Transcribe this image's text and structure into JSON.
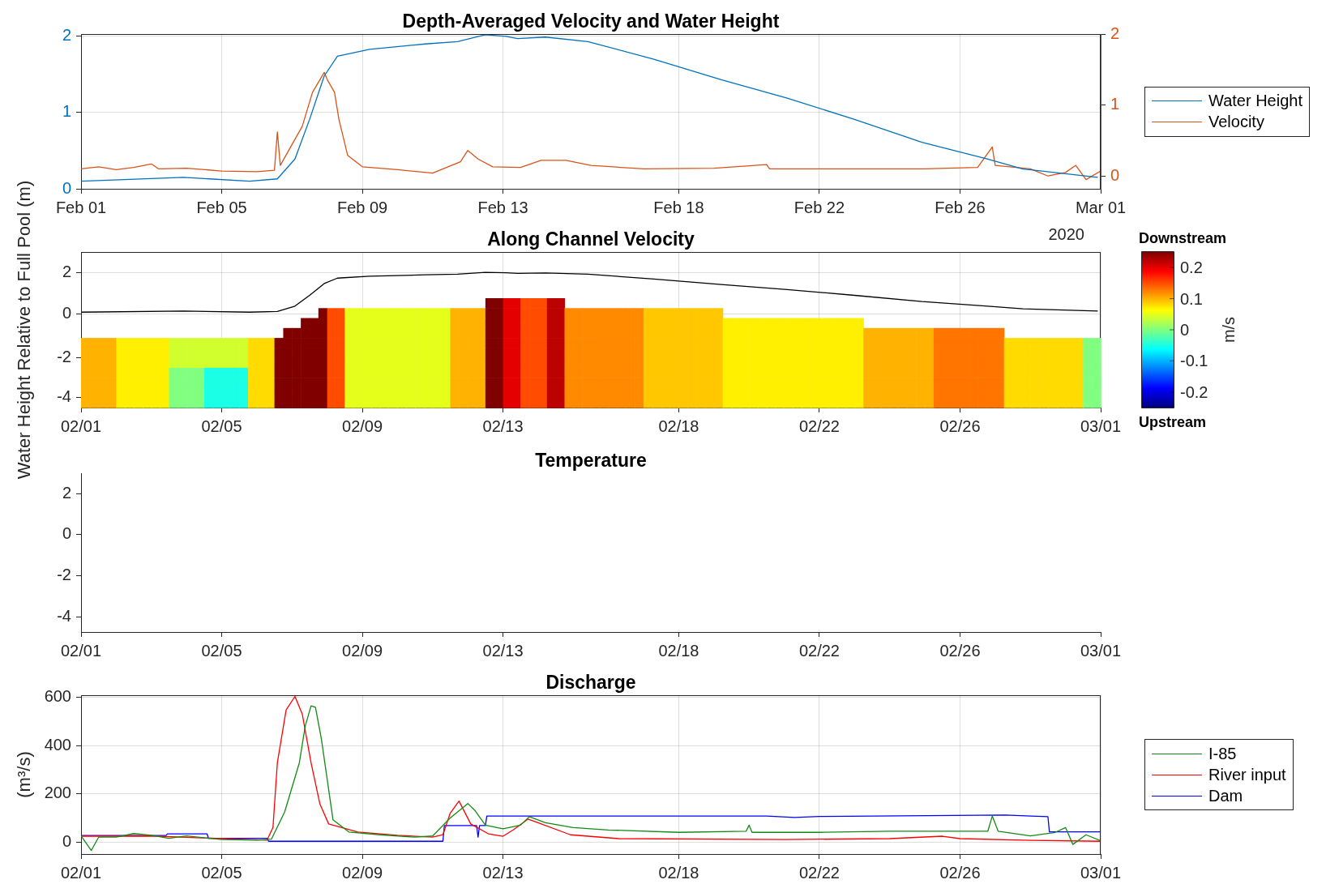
{
  "chart_data": [
    {
      "type": "line",
      "title": "Depth-Averaged Velocity and Water Height",
      "xlim": [
        "2020-02-01",
        "2020-03-01"
      ],
      "xticks": [
        {
          "value": "2020-02-01",
          "label": "Feb 01"
        },
        {
          "value": "2020-02-05",
          "label": "Feb 05"
        },
        {
          "value": "2020-02-09",
          "label": "Feb 09"
        },
        {
          "value": "2020-02-13",
          "label": "Feb 13"
        },
        {
          "value": "2020-02-18",
          "label": "Feb 18"
        },
        {
          "value": "2020-02-22",
          "label": "Feb 22"
        },
        {
          "value": "2020-02-26",
          "label": "Feb 26"
        },
        {
          "value": "2020-03-01",
          "label": "Mar 01"
        }
      ],
      "ylim": [
        0,
        2.03
      ],
      "yticks": [
        0,
        1,
        2
      ],
      "y2lim": [
        -0.18,
        2
      ],
      "y2ticks": [
        0,
        1,
        2
      ],
      "grid": true,
      "legend": "right",
      "annotations": [
        "2020"
      ],
      "series": [
        {
          "name": "Water Height",
          "color": "#0072bd",
          "x": [
            "2020-02-01T00:00",
            "2020-02-03T22:00",
            "2020-02-05T19:00",
            "2020-02-06T14:00",
            "2020-02-07T02:00",
            "2020-02-07T12:00",
            "2020-02-07T22:00",
            "2020-02-08T07:00",
            "2020-02-09T05:00",
            "2020-02-10T19:00",
            "2020-02-11T17:00",
            "2020-02-12T12:00",
            "2020-02-13T02:00",
            "2020-02-13T10:00",
            "2020-02-14T05:00",
            "2020-02-15T10:00",
            "2020-02-17T07:00",
            "2020-02-19T05:00",
            "2020-02-21T02:00",
            "2020-02-23T00:00",
            "2020-02-24T22:00",
            "2020-02-26T19:00",
            "2020-02-27T19:00",
            "2020-02-29T22:00"
          ],
          "values": [
            0.1,
            0.15,
            0.1,
            0.13,
            0.39,
            0.91,
            1.48,
            1.74,
            1.83,
            1.9,
            1.93,
            2.02,
            2.0,
            1.97,
            1.99,
            1.93,
            1.7,
            1.43,
            1.19,
            0.91,
            0.61,
            0.39,
            0.26,
            0.15
          ]
        },
        {
          "name": "Velocity",
          "color": "#d95319",
          "axis": "y2",
          "x": [
            "2020-02-01T00:00",
            "2020-02-01T12:00",
            "2020-02-02T00:00",
            "2020-02-02T12:00",
            "2020-02-03T00:00",
            "2020-02-03T05:00",
            "2020-02-04T00:00",
            "2020-02-05T00:00",
            "2020-02-06T00:00",
            "2020-02-06T12:00",
            "2020-02-06T14:00",
            "2020-02-06T16:00",
            "2020-02-07T07:00",
            "2020-02-07T14:00",
            "2020-02-07T22:00",
            "2020-02-08T00:00",
            "2020-02-08T05:00",
            "2020-02-08T08:00",
            "2020-02-08T14:00",
            "2020-02-09T00:00",
            "2020-02-10T00:00",
            "2020-02-11T00:00",
            "2020-02-11T19:00",
            "2020-02-12T00:00",
            "2020-02-12T07:00",
            "2020-02-12T17:00",
            "2020-02-13T12:00",
            "2020-02-14T02:00",
            "2020-02-14T19:00",
            "2020-02-15T12:00",
            "2020-02-17T00:00",
            "2020-02-19T00:00",
            "2020-02-20T12:00",
            "2020-02-20T14:00",
            "2020-02-23T00:00",
            "2020-02-25T00:00",
            "2020-02-26T12:00",
            "2020-02-26T22:00",
            "2020-02-27T00:00",
            "2020-02-28T00:00",
            "2020-02-28T12:00",
            "2020-02-29T00:00",
            "2020-02-29T07:00",
            "2020-02-29T14:00",
            "2020-03-01T00:00"
          ],
          "values": [
            0.1,
            0.13,
            0.09,
            0.12,
            0.17,
            0.1,
            0.11,
            0.07,
            0.06,
            0.08,
            0.62,
            0.15,
            0.7,
            1.18,
            1.46,
            1.36,
            1.18,
            0.8,
            0.29,
            0.13,
            0.09,
            0.04,
            0.2,
            0.36,
            0.24,
            0.13,
            0.12,
            0.22,
            0.22,
            0.15,
            0.1,
            0.11,
            0.16,
            0.1,
            0.1,
            0.1,
            0.12,
            0.41,
            0.15,
            0.1,
            0.0,
            0.05,
            0.15,
            -0.05,
            0.07
          ]
        }
      ]
    },
    {
      "type": "line",
      "title": "Along Channel Velocity",
      "ylabel": "Water Height Relative to Full Pool (m)",
      "xlim": [
        "2020-02-01",
        "2020-03-01"
      ],
      "xticks": [
        {
          "value": "2020-02-01",
          "label": null
        },
        {
          "value": "2020-02-05",
          "label": null
        },
        {
          "value": "2020-02-09",
          "label": null
        },
        {
          "value": "2020-02-13",
          "label": null
        },
        {
          "value": "2020-02-18",
          "label": null
        },
        {
          "value": "2020-02-22",
          "label": null
        },
        {
          "value": "2020-02-26",
          "label": null
        },
        {
          "value": "2020-03-01",
          "label": null
        }
      ],
      "ylim": [
        -4.5,
        3
      ],
      "yticks": [
        0,
        2
      ],
      "grid": true,
      "tick_labels": "y",
      "series": [
        {
          "color": "#000000",
          "x": [
            "2020-02-01T00:00",
            "2020-02-03T22:00",
            "2020-02-05T19:00",
            "2020-02-06T14:00",
            "2020-02-07T02:00",
            "2020-02-07T12:00",
            "2020-02-07T22:00",
            "2020-02-08T07:00",
            "2020-02-09T05:00",
            "2020-02-10T19:00",
            "2020-02-11T17:00",
            "2020-02-12T12:00",
            "2020-02-13T02:00",
            "2020-02-13T10:00",
            "2020-02-14T05:00",
            "2020-02-15T10:00",
            "2020-02-17T07:00",
            "2020-02-19T05:00",
            "2020-02-21T02:00",
            "2020-02-23T00:00",
            "2020-02-24T22:00",
            "2020-02-26T19:00",
            "2020-02-27T19:00",
            "2020-02-29T22:00"
          ],
          "values": [
            0.1,
            0.15,
            0.1,
            0.13,
            0.39,
            0.91,
            1.48,
            1.74,
            1.83,
            1.9,
            1.93,
            2.02,
            2.0,
            1.97,
            1.99,
            1.93,
            1.7,
            1.43,
            1.19,
            0.91,
            0.61,
            0.39,
            0.26,
            0.15
          ]
        }
      ]
    },
    {
      "type": "heatmap",
      "xlim": [
        "2020-02-01",
        "2020-03-01"
      ],
      "ylim": [
        -4.5,
        1
      ],
      "yticks": [
        -4,
        -2
      ],
      "xticks": [
        {
          "value": "2020-02-01",
          "label": "02/01"
        },
        {
          "value": "2020-02-05",
          "label": "02/05"
        },
        {
          "value": "2020-02-09",
          "label": "02/09"
        },
        {
          "value": "2020-02-13",
          "label": "02/13"
        },
        {
          "value": "2020-02-18",
          "label": "02/18"
        },
        {
          "value": "2020-02-22",
          "label": "02/22"
        },
        {
          "value": "2020-02-26",
          "label": "02/26"
        },
        {
          "value": "2020-03-01",
          "label": "03/01"
        }
      ],
      "clabel": "m/s",
      "clim": [
        -0.25,
        0.25
      ],
      "cticks": [
        -0.2,
        -0.1,
        0,
        0.1,
        0.2
      ],
      "annotations": [
        "Downstream",
        "Upstream"
      ],
      "x": [
        "2020-02-01T03:00",
        "2020-02-01T09:00",
        "2020-02-01T15:00",
        "2020-02-01T21:00",
        "2020-02-02T03:00",
        "2020-02-02T09:00",
        "2020-02-02T15:00",
        "2020-02-02T21:00",
        "2020-02-03T03:00",
        "2020-02-03T09:00",
        "2020-02-03T15:00",
        "2020-02-03T21:00",
        "2020-02-04T03:00",
        "2020-02-04T09:00",
        "2020-02-04T15:00",
        "2020-02-04T21:00",
        "2020-02-05T03:00",
        "2020-02-05T09:00",
        "2020-02-05T15:00",
        "2020-02-05T21:00",
        "2020-02-06T03:00",
        "2020-02-06T09:00",
        "2020-02-06T15:00",
        "2020-02-06T21:00",
        "2020-02-07T03:00",
        "2020-02-07T09:00",
        "2020-02-07T15:00",
        "2020-02-07T21:00",
        "2020-02-08T03:00",
        "2020-02-08T09:00",
        "2020-02-08T15:00",
        "2020-02-08T21:00",
        "2020-02-09T03:00",
        "2020-02-09T09:00",
        "2020-02-09T15:00",
        "2020-02-09T21:00",
        "2020-02-10T03:00",
        "2020-02-10T09:00",
        "2020-02-10T15:00",
        "2020-02-10T21:00",
        "2020-02-11T03:00",
        "2020-02-11T09:00",
        "2020-02-11T15:00",
        "2020-02-11T21:00",
        "2020-02-12T03:00",
        "2020-02-12T09:00",
        "2020-02-12T15:00",
        "2020-02-12T21:00",
        "2020-02-13T03:00",
        "2020-02-13T09:00",
        "2020-02-13T15:00",
        "2020-02-13T21:00",
        "2020-02-14T03:00",
        "2020-02-14T09:00",
        "2020-02-14T15:00",
        "2020-02-14T21:00",
        "2020-02-15T03:00",
        "2020-02-15T09:00",
        "2020-02-15T15:00",
        "2020-02-15T21:00",
        "2020-02-16T03:00",
        "2020-02-16T09:00",
        "2020-02-16T15:00",
        "2020-02-16T21:00",
        "2020-02-17T03:00",
        "2020-02-17T09:00",
        "2020-02-17T15:00",
        "2020-02-17T21:00",
        "2020-02-18T03:00",
        "2020-02-18T09:00",
        "2020-02-18T15:00",
        "2020-02-18T21:00",
        "2020-02-19T03:00",
        "2020-02-19T09:00",
        "2020-02-19T15:00",
        "2020-02-19T21:00",
        "2020-02-20T03:00",
        "2020-02-20T09:00",
        "2020-02-20T15:00",
        "2020-02-20T21:00",
        "2020-02-21T03:00",
        "2020-02-21T09:00",
        "2020-02-21T15:00",
        "2020-02-21T21:00",
        "2020-02-22T03:00",
        "2020-02-22T09:00",
        "2020-02-22T15:00",
        "2020-02-22T21:00",
        "2020-02-23T03:00",
        "2020-02-23T09:00",
        "2020-02-23T15:00",
        "2020-02-23T21:00",
        "2020-02-24T03:00",
        "2020-02-24T09:00",
        "2020-02-24T15:00",
        "2020-02-24T21:00",
        "2020-02-25T03:00",
        "2020-02-25T09:00",
        "2020-02-25T15:00",
        "2020-02-25T21:00",
        "2020-02-26T03:00",
        "2020-02-26T09:00",
        "2020-02-26T15:00",
        "2020-02-26T21:00",
        "2020-02-27T03:00",
        "2020-02-27T09:00",
        "2020-02-27T15:00",
        "2020-02-27T21:00",
        "2020-02-28T03:00",
        "2020-02-28T09:00",
        "2020-02-28T15:00",
        "2020-02-28T21:00",
        "2020-02-29T03:00",
        "2020-02-29T09:00",
        "2020-02-29T15:00",
        "2020-02-29T21:00"
      ],
      "cells": [
        [
          null,
          null,
          null,
          null,
          null,
          null,
          null,
          null,
          null,
          null,
          null,
          null,
          null,
          null,
          null,
          null,
          null,
          null,
          null,
          null,
          null,
          null,
          null,
          null,
          null,
          null,
          null,
          null,
          null,
          null,
          null,
          null,
          null,
          null,
          null,
          null,
          null,
          null,
          null,
          null,
          null,
          null,
          null,
          null,
          null,
          null,
          0.25,
          0.25,
          0.2,
          0.2,
          0.15,
          0.15,
          0.15,
          0.22,
          0.22,
          null,
          null,
          null,
          null,
          null,
          null,
          null,
          null,
          null,
          null,
          null,
          null,
          null,
          null,
          null,
          null,
          null,
          null,
          null,
          null,
          null,
          null,
          null,
          null,
          null,
          null,
          null,
          null,
          null,
          null,
          null,
          null,
          null,
          null,
          null,
          null,
          null,
          null,
          null,
          null,
          null,
          null,
          null,
          null,
          null,
          null,
          null,
          null,
          null,
          null,
          null,
          null,
          null,
          null,
          null,
          null,
          null,
          null,
          null,
          null,
          null
        ],
        [
          null,
          null,
          null,
          null,
          null,
          null,
          null,
          null,
          null,
          null,
          null,
          null,
          null,
          null,
          null,
          null,
          null,
          null,
          null,
          null,
          null,
          null,
          null,
          null,
          null,
          null,
          null,
          0.25,
          0.15,
          0.15,
          0.05,
          0.05,
          0.05,
          0.05,
          0.05,
          0.05,
          0.05,
          0.05,
          0.05,
          0.05,
          0.05,
          0.05,
          0.1,
          0.1,
          0.1,
          0.1,
          0.25,
          0.25,
          0.2,
          0.2,
          0.15,
          0.15,
          0.15,
          0.22,
          0.22,
          0.12,
          0.12,
          0.12,
          0.12,
          0.12,
          0.12,
          0.12,
          0.12,
          0.12,
          0.09,
          0.09,
          0.09,
          0.09,
          0.09,
          0.09,
          0.09,
          0.09,
          0.09,
          null,
          null,
          null,
          null,
          null,
          null,
          null,
          null,
          null,
          null,
          null,
          null,
          null,
          null,
          null,
          null,
          null,
          null,
          null,
          null,
          null,
          null,
          null,
          null,
          null,
          null,
          null,
          null,
          null,
          null,
          null,
          null,
          null,
          null,
          null,
          null,
          null,
          null,
          null,
          null,
          null,
          null,
          null
        ],
        [
          null,
          null,
          null,
          null,
          null,
          null,
          null,
          null,
          null,
          null,
          null,
          null,
          null,
          null,
          null,
          null,
          null,
          null,
          null,
          null,
          null,
          null,
          null,
          null,
          null,
          0.25,
          0.25,
          0.25,
          0.15,
          0.15,
          0.05,
          0.05,
          0.05,
          0.05,
          0.05,
          0.05,
          0.05,
          0.05,
          0.05,
          0.05,
          0.05,
          0.05,
          0.1,
          0.1,
          0.1,
          0.1,
          0.25,
          0.25,
          0.2,
          0.2,
          0.15,
          0.15,
          0.15,
          0.22,
          0.22,
          0.12,
          0.12,
          0.12,
          0.12,
          0.12,
          0.12,
          0.12,
          0.12,
          0.12,
          0.09,
          0.09,
          0.09,
          0.09,
          0.09,
          0.09,
          0.09,
          0.09,
          0.09,
          0.07,
          0.07,
          0.07,
          0.07,
          0.07,
          0.07,
          0.07,
          0.07,
          0.07,
          0.07,
          0.07,
          0.07,
          0.07,
          0.07,
          0.07,
          0.07,
          null,
          null,
          null,
          null,
          null,
          null,
          null,
          null,
          null,
          null,
          null,
          null,
          null,
          null,
          null,
          null,
          null,
          null,
          null,
          null,
          null,
          null,
          null,
          null,
          null,
          null,
          null
        ],
        [
          null,
          null,
          null,
          null,
          null,
          null,
          null,
          null,
          null,
          null,
          null,
          null,
          null,
          null,
          null,
          null,
          null,
          null,
          null,
          null,
          null,
          null,
          null,
          0.25,
          0.25,
          0.25,
          0.25,
          0.25,
          0.15,
          0.15,
          0.05,
          0.05,
          0.05,
          0.05,
          0.05,
          0.05,
          0.05,
          0.05,
          0.05,
          0.05,
          0.05,
          0.05,
          0.1,
          0.1,
          0.1,
          0.1,
          0.25,
          0.25,
          0.2,
          0.2,
          0.15,
          0.15,
          0.15,
          0.22,
          0.22,
          0.12,
          0.12,
          0.12,
          0.12,
          0.12,
          0.12,
          0.12,
          0.12,
          0.12,
          0.09,
          0.09,
          0.09,
          0.09,
          0.09,
          0.09,
          0.09,
          0.09,
          0.09,
          0.07,
          0.07,
          0.07,
          0.07,
          0.07,
          0.07,
          0.07,
          0.07,
          0.07,
          0.07,
          0.07,
          0.07,
          0.07,
          0.07,
          0.07,
          0.07,
          0.1,
          0.1,
          0.1,
          0.1,
          0.1,
          0.1,
          0.1,
          0.1,
          0.13,
          0.13,
          0.13,
          0.13,
          0.13,
          0.13,
          0.13,
          0.13,
          null,
          null,
          null,
          null,
          null,
          null,
          null,
          null,
          null,
          null,
          null
        ],
        [
          0.1,
          0.1,
          0.1,
          0.1,
          0.07,
          0.07,
          0.07,
          0.07,
          0.07,
          0.07,
          0.04,
          0.04,
          0.04,
          0.04,
          0.04,
          0.04,
          0.04,
          0.04,
          0.04,
          0.08,
          0.08,
          0.08,
          0.25,
          0.25,
          0.25,
          0.25,
          0.25,
          0.25,
          0.15,
          0.15,
          0.05,
          0.05,
          0.05,
          0.05,
          0.05,
          0.05,
          0.05,
          0.05,
          0.05,
          0.05,
          0.05,
          0.05,
          0.1,
          0.1,
          0.1,
          0.1,
          0.25,
          0.25,
          0.2,
          0.2,
          0.15,
          0.15,
          0.15,
          0.22,
          0.22,
          0.12,
          0.12,
          0.12,
          0.12,
          0.12,
          0.12,
          0.12,
          0.12,
          0.12,
          0.09,
          0.09,
          0.09,
          0.09,
          0.09,
          0.09,
          0.09,
          0.09,
          0.09,
          0.07,
          0.07,
          0.07,
          0.07,
          0.07,
          0.07,
          0.07,
          0.07,
          0.07,
          0.07,
          0.07,
          0.07,
          0.07,
          0.07,
          0.07,
          0.07,
          0.1,
          0.1,
          0.1,
          0.1,
          0.1,
          0.1,
          0.1,
          0.1,
          0.13,
          0.13,
          0.13,
          0.13,
          0.13,
          0.13,
          0.13,
          0.13,
          0.08,
          0.08,
          0.08,
          0.08,
          0.08,
          0.08,
          0.08,
          0.08,
          0.08,
          0,
          0
        ],
        [
          0.1,
          0.1,
          0.1,
          0.1,
          0.07,
          0.07,
          0.07,
          0.07,
          0.07,
          0.07,
          0.04,
          0.04,
          0.04,
          0.04,
          0.04,
          0.04,
          0.04,
          0.04,
          0.04,
          0.08,
          0.08,
          0.08,
          0.25,
          0.25,
          0.25,
          0.25,
          0.25,
          0.25,
          0.15,
          0.15,
          0.05,
          0.05,
          0.05,
          0.05,
          0.05,
          0.05,
          0.05,
          0.05,
          0.05,
          0.05,
          0.05,
          0.05,
          0.1,
          0.1,
          0.1,
          0.1,
          0.25,
          0.25,
          0.2,
          0.2,
          0.15,
          0.15,
          0.15,
          0.22,
          0.22,
          0.12,
          0.12,
          0.12,
          0.12,
          0.12,
          0.12,
          0.12,
          0.12,
          0.12,
          0.09,
          0.09,
          0.09,
          0.09,
          0.09,
          0.09,
          0.09,
          0.09,
          0.09,
          0.07,
          0.07,
          0.07,
          0.07,
          0.07,
          0.07,
          0.07,
          0.07,
          0.07,
          0.07,
          0.07,
          0.07,
          0.07,
          0.07,
          0.07,
          0.07,
          0.1,
          0.1,
          0.1,
          0.1,
          0.1,
          0.1,
          0.1,
          0.1,
          0.13,
          0.13,
          0.13,
          0.13,
          0.13,
          0.13,
          0.13,
          0.13,
          0.08,
          0.08,
          0.08,
          0.08,
          0.08,
          0.08,
          0.08,
          0.08,
          0.08,
          0,
          0
        ],
        [
          0.1,
          0.1,
          0.1,
          0.1,
          0.07,
          0.07,
          0.07,
          0.07,
          0.07,
          0.07,
          0.04,
          0.04,
          0.04,
          0.04,
          0.04,
          0.04,
          0.04,
          0.04,
          0.04,
          0.08,
          0.08,
          0.08,
          0.25,
          0.25,
          0.25,
          0.25,
          0.25,
          0.25,
          0.15,
          0.15,
          0.05,
          0.05,
          0.05,
          0.05,
          0.05,
          0.05,
          0.05,
          0.05,
          0.05,
          0.05,
          0.05,
          0.05,
          0.1,
          0.1,
          0.1,
          0.1,
          0.25,
          0.25,
          0.2,
          0.2,
          0.15,
          0.15,
          0.15,
          0.22,
          0.22,
          0.12,
          0.12,
          0.12,
          0.12,
          0.12,
          0.12,
          0.12,
          0.12,
          0.12,
          0.09,
          0.09,
          0.09,
          0.09,
          0.09,
          0.09,
          0.09,
          0.09,
          0.09,
          0.07,
          0.07,
          0.07,
          0.07,
          0.07,
          0.07,
          0.07,
          0.07,
          0.07,
          0.07,
          0.07,
          0.07,
          0.07,
          0.07,
          0.07,
          0.07,
          0.1,
          0.1,
          0.1,
          0.1,
          0.1,
          0.1,
          0.1,
          0.1,
          0.13,
          0.13,
          0.13,
          0.13,
          0.13,
          0.13,
          0.13,
          0.13,
          0.08,
          0.08,
          0.08,
          0.08,
          0.08,
          0.08,
          0.08,
          0.08,
          0.08,
          0,
          0
        ],
        [
          0.1,
          0.1,
          0.1,
          0.1,
          0.07,
          0.07,
          0.07,
          0.07,
          0.07,
          0.07,
          0,
          0,
          0,
          0,
          -0.05,
          -0.05,
          -0.05,
          -0.05,
          -0.05,
          0.08,
          0.08,
          0.08,
          0.25,
          0.25,
          0.25,
          0.25,
          0.25,
          0.25,
          0.15,
          0.15,
          0.05,
          0.05,
          0.05,
          0.05,
          0.05,
          0.05,
          0.05,
          0.05,
          0.05,
          0.05,
          0.05,
          0.05,
          0.1,
          0.1,
          0.1,
          0.1,
          0.25,
          0.25,
          0.2,
          0.2,
          0.15,
          0.15,
          0.15,
          0.22,
          0.22,
          0.12,
          0.12,
          0.12,
          0.12,
          0.12,
          0.12,
          0.12,
          0.12,
          0.12,
          0.09,
          0.09,
          0.09,
          0.09,
          0.09,
          0.09,
          0.09,
          0.09,
          0.09,
          0.07,
          0.07,
          0.07,
          0.07,
          0.07,
          0.07,
          0.07,
          0.07,
          0.07,
          0.07,
          0.07,
          0.07,
          0.07,
          0.07,
          0.07,
          0.07,
          0.1,
          0.1,
          0.1,
          0.1,
          0.1,
          0.1,
          0.1,
          0.1,
          0.13,
          0.13,
          0.13,
          0.13,
          0.13,
          0.13,
          0.13,
          0.13,
          0.08,
          0.08,
          0.08,
          0.08,
          0.08,
          0.08,
          0.08,
          0.08,
          0.08,
          0,
          0
        ],
        [
          0.1,
          0.1,
          0.1,
          0.1,
          0.07,
          0.07,
          0.07,
          0.07,
          0.07,
          0.07,
          0,
          0,
          0,
          0,
          -0.05,
          -0.05,
          -0.05,
          -0.05,
          -0.05,
          0.08,
          0.08,
          0.08,
          0.25,
          0.25,
          0.25,
          0.25,
          0.25,
          0.25,
          0.15,
          0.15,
          0.05,
          0.05,
          0.05,
          0.05,
          0.05,
          0.05,
          0.05,
          0.05,
          0.05,
          0.05,
          0.05,
          0.05,
          0.1,
          0.1,
          0.1,
          0.1,
          0.25,
          0.25,
          0.2,
          0.2,
          0.15,
          0.15,
          0.15,
          0.22,
          0.22,
          0.12,
          0.12,
          0.12,
          0.12,
          0.12,
          0.12,
          0.12,
          0.12,
          0.12,
          0.09,
          0.09,
          0.09,
          0.09,
          0.09,
          0.09,
          0.09,
          0.09,
          0.09,
          0.07,
          0.07,
          0.07,
          0.07,
          0.07,
          0.07,
          0.07,
          0.07,
          0.07,
          0.07,
          0.07,
          0.07,
          0.07,
          0.07,
          0.07,
          0.07,
          0.1,
          0.1,
          0.1,
          0.1,
          0.1,
          0.1,
          0.1,
          0.1,
          0.13,
          0.13,
          0.13,
          0.13,
          0.13,
          0.13,
          0.13,
          0.13,
          0.08,
          0.08,
          0.08,
          0.08,
          0.08,
          0.08,
          0.08,
          0.08,
          0.08,
          0,
          0
        ],
        [
          0.1,
          0.1,
          0.1,
          0.1,
          0.07,
          0.07,
          0.07,
          0.07,
          0.07,
          0.07,
          0,
          0,
          0,
          0,
          -0.05,
          -0.05,
          -0.05,
          -0.05,
          -0.05,
          0.08,
          0.08,
          0.08,
          0.25,
          0.25,
          0.25,
          0.25,
          0.25,
          0.25,
          0.15,
          0.15,
          0.05,
          0.05,
          0.05,
          0.05,
          0.05,
          0.05,
          0.05,
          0.05,
          0.05,
          0.05,
          0.05,
          0.05,
          0.1,
          0.1,
          0.1,
          0.1,
          0.25,
          0.25,
          0.2,
          0.2,
          0.15,
          0.15,
          0.15,
          0.22,
          0.22,
          0.12,
          0.12,
          0.12,
          0.12,
          0.12,
          0.12,
          0.12,
          0.12,
          0.12,
          0.09,
          0.09,
          0.09,
          0.09,
          0.09,
          0.09,
          0.09,
          0.09,
          0.09,
          0.07,
          0.07,
          0.07,
          0.07,
          0.07,
          0.07,
          0.07,
          0.07,
          0.07,
          0.07,
          0.07,
          0.07,
          0.07,
          0.07,
          0.07,
          0.07,
          0.1,
          0.1,
          0.1,
          0.1,
          0.1,
          0.1,
          0.1,
          0.1,
          0.13,
          0.13,
          0.13,
          0.13,
          0.13,
          0.13,
          0.13,
          0.13,
          0.08,
          0.08,
          0.08,
          0.08,
          0.08,
          0.08,
          0.08,
          0.08,
          0.08,
          0,
          0
        ],
        [
          0.1,
          0.1,
          0.1,
          0.1,
          0.07,
          0.07,
          0.07,
          0.07,
          0.07,
          0.07,
          0,
          0,
          0,
          0,
          -0.05,
          -0.05,
          -0.05,
          -0.05,
          -0.05,
          0.08,
          0.08,
          0.08,
          0.25,
          0.25,
          0.25,
          0.25,
          0.25,
          0.25,
          0.15,
          0.15,
          0.05,
          0.05,
          0.05,
          0.05,
          0.05,
          0.05,
          0.05,
          0.05,
          0.05,
          0.05,
          0.05,
          0.05,
          0.1,
          0.1,
          0.1,
          0.1,
          0.25,
          0.25,
          0.2,
          0.2,
          0.15,
          0.15,
          0.15,
          0.22,
          0.22,
          0.12,
          0.12,
          0.12,
          0.12,
          0.12,
          0.12,
          0.12,
          0.12,
          0.12,
          0.09,
          0.09,
          0.09,
          0.09,
          0.09,
          0.09,
          0.09,
          0.09,
          0.09,
          0.07,
          0.07,
          0.07,
          0.07,
          0.07,
          0.07,
          0.07,
          0.07,
          0.07,
          0.07,
          0.07,
          0.07,
          0.07,
          0.07,
          0.07,
          0.07,
          0.1,
          0.1,
          0.1,
          0.1,
          0.1,
          0.1,
          0.1,
          0.1,
          0.13,
          0.13,
          0.13,
          0.13,
          0.13,
          0.13,
          0.13,
          0.13,
          0.08,
          0.08,
          0.08,
          0.08,
          0.08,
          0.08,
          0.08,
          0.08,
          0.08,
          0,
          0
        ]
      ]
    },
    {
      "type": "line",
      "title": "Temperature",
      "xlim": [
        "2020-02-01",
        "2020-03-01"
      ],
      "xticks": [
        {
          "value": "2020-02-01",
          "label": "02/01"
        },
        {
          "value": "2020-02-05",
          "label": "02/05"
        },
        {
          "value": "2020-02-09",
          "label": "02/09"
        },
        {
          "value": "2020-02-13",
          "label": "02/13"
        },
        {
          "value": "2020-02-18",
          "label": "02/18"
        },
        {
          "value": "2020-02-22",
          "label": "02/22"
        },
        {
          "value": "2020-02-26",
          "label": "02/26"
        },
        {
          "value": "2020-03-01",
          "label": "03/01"
        }
      ],
      "ylim": [
        -4.75,
        3
      ],
      "yticks": [
        -4,
        -2,
        0,
        2
      ]
    },
    {
      "type": "line",
      "title": "Discharge",
      "ylabel": "(m³/s)",
      "xlim": [
        "2020-02-01",
        "2020-03-01"
      ],
      "xticks": [
        {
          "value": "2020-02-01",
          "label": "02/01"
        },
        {
          "value": "2020-02-05",
          "label": "02/05"
        },
        {
          "value": "2020-02-09",
          "label": "02/09"
        },
        {
          "value": "2020-02-13",
          "label": "02/13"
        },
        {
          "value": "2020-02-18",
          "label": "02/18"
        },
        {
          "value": "2020-02-22",
          "label": "02/22"
        },
        {
          "value": "2020-02-26",
          "label": "02/26"
        },
        {
          "value": "2020-03-01",
          "label": "03/01"
        }
      ],
      "ylim": [
        -50,
        610
      ],
      "yticks": [
        0,
        200,
        400,
        600
      ],
      "grid": true,
      "legend": "right",
      "series": [
        {
          "name": "I-85",
          "color": "#138a13",
          "x": [
            "2020-02-01T00:00",
            "2020-02-01T07:00",
            "2020-02-01T12:00",
            "2020-02-02T00:00",
            "2020-02-02T12:00",
            "2020-02-03T00:00",
            "2020-02-03T12:00",
            "2020-02-04T00:00",
            "2020-02-05T00:00",
            "2020-02-06T00:00",
            "2020-02-06T10:00",
            "2020-02-06T19:00",
            "2020-02-07T00:00",
            "2020-02-07T05:00",
            "2020-02-07T09:00",
            "2020-02-07T13:00",
            "2020-02-07T16:00",
            "2020-02-07T20:00",
            "2020-02-08T00:00",
            "2020-02-08T04:00",
            "2020-02-08T15:00",
            "2020-02-09T12:00",
            "2020-02-10T12:00",
            "2020-02-11T00:00",
            "2020-02-11T12:00",
            "2020-02-12T00:00",
            "2020-02-12T05:00",
            "2020-02-12T12:00",
            "2020-02-13T00:00",
            "2020-02-13T12:00",
            "2020-02-13T18:00",
            "2020-02-14T05:00",
            "2020-02-15T00:00",
            "2020-02-16T00:00",
            "2020-02-18T00:00",
            "2020-02-19T22:00",
            "2020-02-20T00:00",
            "2020-02-20T02:00",
            "2020-02-22T00:00",
            "2020-02-24T00:00",
            "2020-02-26T19:00",
            "2020-02-26T22:00",
            "2020-02-27T02:00",
            "2020-02-28T00:00",
            "2020-02-28T17:00",
            "2020-02-29T00:00",
            "2020-02-29T05:00",
            "2020-02-29T14:00",
            "2020-03-01T00:00"
          ],
          "values": [
            25,
            -35,
            20,
            20,
            35,
            28,
            15,
            25,
            10,
            8,
            12,
            125,
            227,
            329,
            481,
            566,
            560,
            430,
            261,
            92,
            41,
            30,
            20,
            25,
            100,
            160,
            130,
            70,
            55,
            70,
            105,
            80,
            60,
            50,
            40,
            45,
            70,
            40,
            40,
            45,
            45,
            108,
            45,
            25,
            40,
            60,
            -10,
            30,
            5
          ]
        },
        {
          "name": "River input",
          "color": "#ff0000",
          "x": [
            "2020-02-01T00:00",
            "2020-02-03T00:00",
            "2020-02-05T00:00",
            "2020-02-06T07:00",
            "2020-02-06T11:00",
            "2020-02-06T14:00",
            "2020-02-06T20:00",
            "2020-02-07T02:00",
            "2020-02-07T07:00",
            "2020-02-07T13:00",
            "2020-02-07T19:00",
            "2020-02-08T01:00",
            "2020-02-08T21:00",
            "2020-02-10T00:00",
            "2020-02-11T00:00",
            "2020-02-11T07:00",
            "2020-02-11T12:00",
            "2020-02-11T18:00",
            "2020-02-12T02:00",
            "2020-02-12T14:00",
            "2020-02-13T00:00",
            "2020-02-13T07:00",
            "2020-02-13T17:00",
            "2020-02-14T00:00",
            "2020-02-14T22:00",
            "2020-02-16T07:00",
            "2020-02-21T00:00",
            "2020-02-24T00:00",
            "2020-02-25T12:00",
            "2020-02-26T00:00",
            "2020-02-28T00:00",
            "2020-03-01T00:00"
          ],
          "values": [
            24,
            25,
            14,
            8,
            60,
            329,
            549,
            605,
            532,
            329,
            159,
            75,
            41,
            28,
            20,
            30,
            120,
            170,
            75,
            34,
            24,
            50,
            95,
            80,
            30,
            14,
            10,
            14,
            24,
            14,
            7,
            3
          ]
        },
        {
          "name": "Dam",
          "color": "#0000ff",
          "x": [
            "2020-02-01T00:00",
            "2020-02-03T10:00",
            "2020-02-03T11:00",
            "2020-02-04T14:00",
            "2020-02-04T15:00",
            "2020-02-06T07:00",
            "2020-02-06T08:00",
            "2020-02-11T07:00",
            "2020-02-11T08:00",
            "2020-02-12T06:00",
            "2020-02-12T07:00",
            "2020-02-12T08:00",
            "2020-02-12T12:00",
            "2020-02-12T13:00",
            "2020-02-20T12:00",
            "2020-02-21T07:00",
            "2020-02-22T00:00",
            "2020-02-27T07:00",
            "2020-02-28T00:00",
            "2020-02-28T12:00",
            "2020-02-28T13:00",
            "2020-03-01T00:00"
          ],
          "values": [
            27,
            27,
            34,
            34,
            15,
            15,
            3,
            3,
            68,
            68,
            20,
            68,
            68,
            108,
            108,
            102,
            106,
            112,
            108,
            105,
            42,
            42
          ]
        }
      ]
    }
  ]
}
